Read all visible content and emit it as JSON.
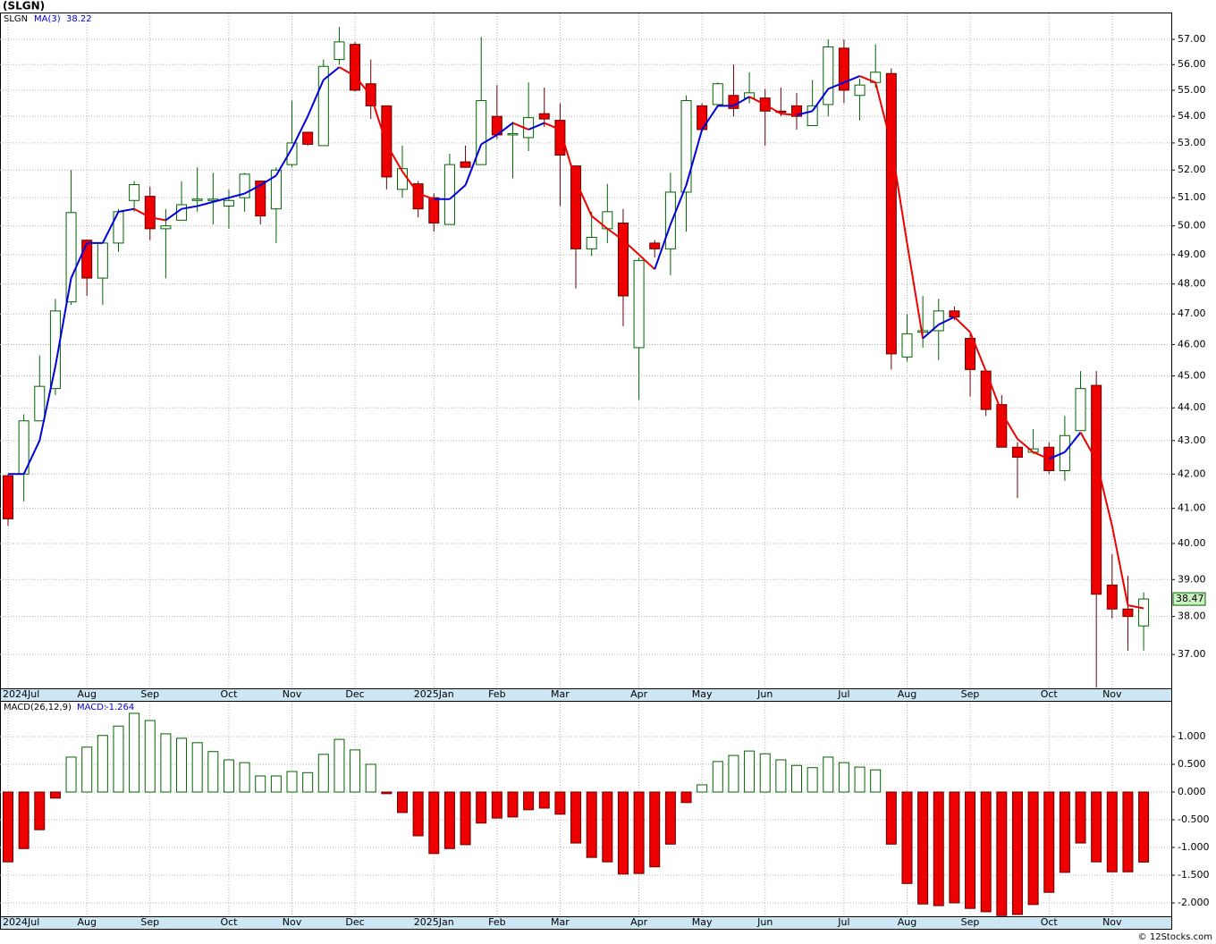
{
  "title": "(SLGN)",
  "footer": "© 12Stocks.com",
  "chart_data": [
    {
      "type": "candlestick",
      "symbol": "SLGN",
      "log": true,
      "grid": true,
      "categories": [
        "2024Jul",
        null,
        null,
        null,
        null,
        "Aug",
        null,
        null,
        null,
        "Sep",
        null,
        null,
        null,
        null,
        "Oct",
        null,
        null,
        null,
        "Nov",
        null,
        null,
        null,
        "Dec",
        null,
        null,
        null,
        null,
        "2025Jan",
        null,
        null,
        null,
        "Feb",
        null,
        null,
        null,
        "Mar",
        null,
        null,
        null,
        null,
        "Apr",
        null,
        null,
        null,
        "May",
        null,
        null,
        null,
        "Jun",
        null,
        null,
        null,
        null,
        "Jul",
        null,
        null,
        null,
        "Aug",
        null,
        null,
        null,
        "Sep",
        null,
        null,
        null,
        null,
        "Oct",
        null,
        null,
        null,
        "Nov",
        null,
        null
      ],
      "open": [
        41.95,
        42.0,
        43.6,
        44.6,
        47.4,
        49.5,
        48.2,
        49.4,
        50.9,
        51.05,
        49.9,
        50.2,
        50.9,
        50.9,
        50.7,
        51.0,
        51.6,
        50.6,
        52.2,
        53.4,
        52.9,
        56.2,
        56.8,
        55.25,
        54.4,
        51.3,
        51.5,
        51.0,
        50.05,
        52.3,
        52.2,
        54.0,
        53.3,
        53.2,
        54.1,
        53.85,
        52.15,
        49.2,
        49.9,
        50.1,
        45.9,
        49.4,
        49.2,
        51.2,
        54.4,
        54.45,
        54.8,
        54.7,
        54.7,
        54.2,
        54.4,
        53.65,
        54.45,
        56.65,
        54.8,
        55.3,
        55.65,
        45.6,
        46.4,
        46.45,
        47.1,
        46.2,
        45.15,
        44.1,
        42.8,
        42.65,
        42.8,
        42.1,
        43.3,
        44.7,
        38.85,
        38.2,
        37.75
      ],
      "high": [
        42.0,
        43.8,
        45.65,
        47.5,
        52.0,
        49.5,
        49.4,
        50.6,
        51.6,
        51.4,
        50.6,
        51.6,
        52.1,
        51.9,
        51.3,
        51.9,
        51.6,
        52.1,
        54.6,
        53.4,
        56.2,
        57.5,
        56.9,
        56.2,
        54.4,
        52.9,
        51.6,
        51.15,
        52.6,
        52.9,
        57.1,
        55.2,
        53.8,
        55.3,
        55.1,
        54.5,
        52.15,
        50.5,
        51.5,
        50.6,
        48.9,
        49.5,
        51.9,
        54.8,
        54.5,
        55.3,
        56.0,
        55.7,
        55.05,
        55.1,
        54.9,
        55.4,
        57.0,
        57.0,
        55.45,
        56.8,
        55.85,
        47.0,
        47.6,
        47.5,
        47.25,
        46.4,
        45.2,
        44.4,
        42.95,
        43.35,
        42.95,
        43.75,
        45.15,
        45.15,
        39.7,
        39.1,
        38.65
      ],
      "low": [
        40.5,
        41.2,
        43.6,
        44.4,
        47.3,
        47.6,
        47.3,
        49.1,
        50.5,
        49.5,
        48.2,
        50.2,
        50.5,
        50.05,
        49.9,
        50.5,
        50.05,
        49.4,
        52.1,
        52.9,
        52.9,
        56.0,
        54.95,
        53.9,
        51.3,
        51.0,
        50.3,
        49.8,
        50.05,
        52.1,
        52.2,
        53.15,
        51.7,
        52.7,
        53.6,
        50.7,
        47.85,
        48.95,
        49.4,
        46.6,
        44.25,
        48.9,
        48.3,
        49.8,
        53.4,
        54.4,
        54.0,
        54.5,
        52.9,
        54.0,
        53.5,
        53.65,
        54.0,
        54.5,
        53.85,
        55.1,
        45.2,
        45.45,
        45.9,
        45.5,
        46.8,
        44.35,
        43.75,
        42.8,
        41.3,
        42.6,
        42.0,
        41.8,
        43.3,
        36.15,
        37.95,
        37.1,
        37.1
      ],
      "close": [
        40.7,
        43.6,
        44.67,
        47.1,
        50.47,
        48.2,
        49.4,
        50.5,
        51.47,
        49.9,
        50.0,
        50.75,
        50.95,
        50.95,
        50.9,
        51.85,
        50.35,
        52.0,
        53.0,
        52.95,
        55.93,
        56.9,
        55.0,
        54.4,
        51.75,
        52.05,
        50.6,
        50.1,
        52.2,
        52.1,
        54.6,
        53.3,
        53.35,
        53.95,
        53.9,
        52.55,
        49.2,
        49.6,
        50.5,
        47.6,
        48.8,
        49.2,
        51.2,
        54.6,
        53.5,
        55.25,
        54.3,
        54.9,
        54.2,
        54.15,
        54.0,
        54.4,
        56.7,
        55.0,
        55.2,
        55.7,
        45.7,
        46.35,
        46.45,
        47.1,
        46.9,
        45.2,
        43.95,
        42.8,
        42.5,
        42.75,
        42.1,
        43.15,
        44.6,
        38.6,
        38.2,
        38.0,
        38.47
      ],
      "ma": {
        "name": "MA(3)",
        "values": [
          42.0,
          42.0,
          43.0,
          45.3,
          48.2,
          49.4,
          49.4,
          50.5,
          50.6,
          50.3,
          50.2,
          50.6,
          50.7,
          50.85,
          51.0,
          51.15,
          51.45,
          51.8,
          52.8,
          54.0,
          55.4,
          55.9,
          55.55,
          54.8,
          52.95,
          51.95,
          51.15,
          50.95,
          50.95,
          51.45,
          52.95,
          53.3,
          53.75,
          53.5,
          53.75,
          53.5,
          51.6,
          50.35,
          49.9,
          49.5,
          49.0,
          48.5,
          50.05,
          51.45,
          53.5,
          54.4,
          54.4,
          54.75,
          54.45,
          54.1,
          54.05,
          54.2,
          55.05,
          55.3,
          55.55,
          55.3,
          52.95,
          49.4,
          46.2,
          46.65,
          46.9,
          46.4,
          45.15,
          43.85,
          43.05,
          42.65,
          42.45,
          42.65,
          43.25,
          42.4,
          40.5,
          38.3,
          38.22
        ]
      },
      "up_color": "#006400",
      "down_color": "#ee0000",
      "ma_up_color": "#0000dd",
      "ma_down_color": "#ee0000",
      "ylim": [
        36.13,
        58.05
      ],
      "yticks": [
        {
          "value": 37,
          "label": "37.00"
        },
        {
          "value": 38,
          "label": "38.00"
        },
        {
          "value": 39,
          "label": "39.00"
        },
        {
          "value": 40,
          "label": "40.00"
        },
        {
          "value": 41,
          "label": "41.00"
        },
        {
          "value": 42,
          "label": "42.00"
        },
        {
          "value": 43,
          "label": "43.00"
        },
        {
          "value": 44,
          "label": "44.00"
        },
        {
          "value": 45,
          "label": "45.00"
        },
        {
          "value": 46,
          "label": "46.00"
        },
        {
          "value": 47,
          "label": "47.00"
        },
        {
          "value": 48,
          "label": "48.00"
        },
        {
          "value": 49,
          "label": "49.00"
        },
        {
          "value": 50,
          "label": "50.00"
        },
        {
          "value": 51,
          "label": "51.00"
        },
        {
          "value": 52,
          "label": "52.00"
        },
        {
          "value": 53,
          "label": "53.00"
        },
        {
          "value": 54,
          "label": "54.00"
        },
        {
          "value": 55,
          "label": "55.00"
        },
        {
          "value": 56,
          "label": "56.00"
        },
        {
          "value": 57,
          "label": "57.00"
        }
      ]
    },
    {
      "type": "macd",
      "name": "MACD(26,12,9)",
      "value_prefix": "MACD:",
      "grid": true,
      "values": [
        -1.26,
        -1.02,
        -0.68,
        -0.11,
        0.63,
        0.81,
        1.02,
        1.19,
        1.42,
        1.29,
        1.05,
        0.97,
        0.89,
        0.73,
        0.58,
        0.53,
        0.29,
        0.29,
        0.37,
        0.35,
        0.68,
        0.95,
        0.76,
        0.5,
        -0.03,
        -0.37,
        -0.79,
        -1.11,
        -1.02,
        -0.95,
        -0.56,
        -0.47,
        -0.45,
        -0.32,
        -0.29,
        -0.4,
        -0.92,
        -1.18,
        -1.26,
        -1.48,
        -1.47,
        -1.35,
        -0.94,
        -0.19,
        0.13,
        0.55,
        0.66,
        0.74,
        0.69,
        0.58,
        0.48,
        0.44,
        0.63,
        0.53,
        0.45,
        0.4,
        -0.94,
        -1.65,
        -2.02,
        -2.05,
        -2.0,
        -2.1,
        -2.16,
        -2.23,
        -2.21,
        -2.03,
        -1.81,
        -1.45,
        -0.92,
        -1.26,
        -1.44,
        -1.44,
        -1.264
      ],
      "up_color": "#006400",
      "down_color": "#ee0000",
      "ylim": [
        -2.242,
        1.629
      ],
      "yticks": [
        {
          "value": 1,
          "label": "1.000"
        },
        {
          "value": 0.5,
          "label": "0.500"
        },
        {
          "value": 0,
          "label": "0.000"
        },
        {
          "value": -0.5,
          "label": "-0.500"
        },
        {
          "value": -1,
          "label": "-1.000"
        },
        {
          "value": -1.5,
          "label": "-1.500"
        },
        {
          "value": -2,
          "label": "-2.000"
        }
      ]
    }
  ]
}
